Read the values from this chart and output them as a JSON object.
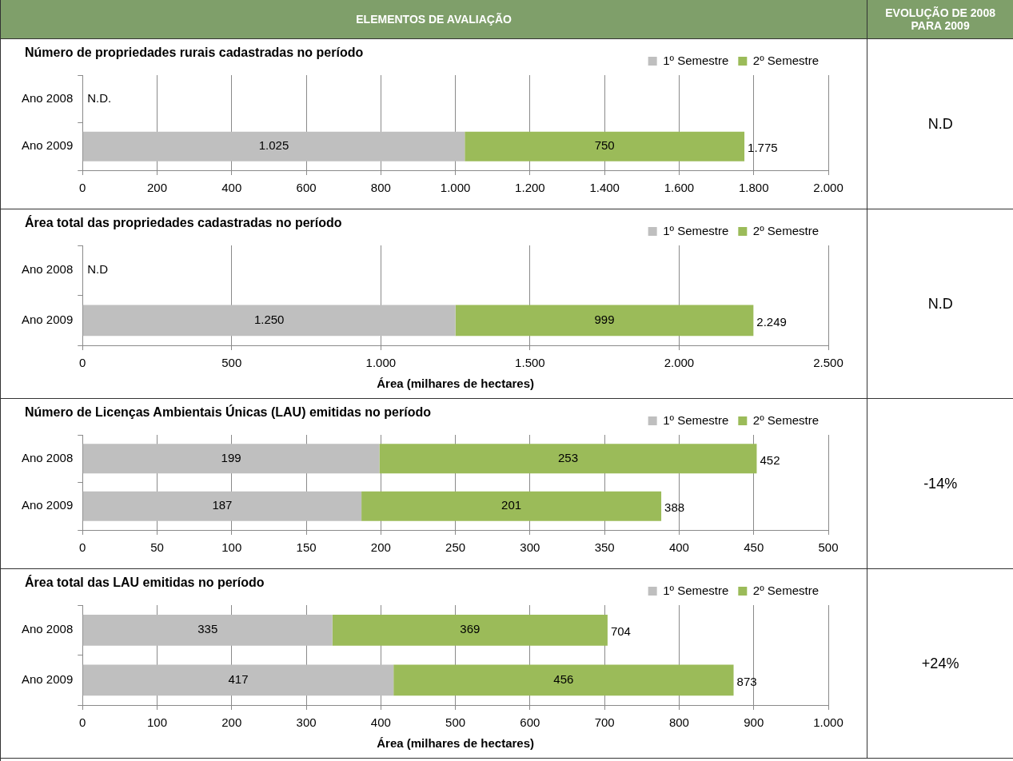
{
  "chart_data": [
    {
      "type": "other",
      "annotations": [
        "ELEMENTOS DE AVALIAÇÃO",
        "EVOLUÇÃO DE 2008 PARA 2009"
      ]
    },
    {
      "type": "bar",
      "title": "Número de propriedades rurais cadastradas no período",
      "orientation": "horizontal",
      "stacked": true,
      "categories": [
        "Ano 2008",
        "Ano 2009"
      ],
      "series": [
        {
          "name": "1º Semestre",
          "color": "#bfbfbf",
          "values": [
            null,
            1025
          ],
          "value_labels": [
            null,
            "1.025"
          ]
        },
        {
          "name": "2º Semestre",
          "color": "#9bbb59",
          "values": [
            null,
            750
          ],
          "value_labels": [
            null,
            "750"
          ]
        }
      ],
      "totals": [
        null,
        "1.775"
      ],
      "xlim": [
        0,
        2000
      ],
      "xticks": [
        0,
        200,
        400,
        600,
        800,
        {
          "value": 1000,
          "label": "1.000"
        },
        {
          "value": 1200,
          "label": "1.200"
        },
        {
          "value": 1400,
          "label": "1.400"
        },
        {
          "value": 1600,
          "label": "1.600"
        },
        {
          "value": 1800,
          "label": "1.800"
        },
        {
          "value": 2000,
          "label": "2.000"
        }
      ],
      "grid": "x",
      "legend": "top right",
      "annotations": [
        "N.D.",
        "N.D"
      ]
    },
    {
      "type": "bar",
      "title": "Área total das propriedades cadastradas no período",
      "xlabel": "Área (milhares de hectares)",
      "orientation": "horizontal",
      "stacked": true,
      "categories": [
        "Ano 2008",
        "Ano 2009"
      ],
      "series": [
        {
          "name": "1º Semestre",
          "color": "#bfbfbf",
          "values": [
            null,
            1250
          ],
          "value_labels": [
            null,
            "1.250"
          ]
        },
        {
          "name": "2º Semestre",
          "color": "#9bbb59",
          "values": [
            null,
            999
          ],
          "value_labels": [
            null,
            "999"
          ]
        }
      ],
      "totals": [
        null,
        "2.249"
      ],
      "xlim": [
        0,
        2500
      ],
      "xticks": [
        0,
        500,
        {
          "value": 1000,
          "label": "1.000"
        },
        {
          "value": 1500,
          "label": "1.500"
        },
        {
          "value": 2000,
          "label": "2.000"
        },
        {
          "value": 2500,
          "label": "2.500"
        }
      ],
      "grid": "x",
      "legend": "top right",
      "annotations": [
        "N.D",
        "N.D"
      ]
    },
    {
      "type": "bar",
      "title": "Número de Licenças Ambientais Únicas (LAU) emitidas no período",
      "orientation": "horizontal",
      "stacked": true,
      "categories": [
        "Ano 2008",
        "Ano 2009"
      ],
      "series": [
        {
          "name": "1º Semestre",
          "color": "#bfbfbf",
          "values": [
            199,
            187
          ],
          "value_labels": [
            "199",
            "187"
          ]
        },
        {
          "name": "2º Semestre",
          "color": "#9bbb59",
          "values": [
            253,
            201
          ],
          "value_labels": [
            "253",
            "201"
          ]
        }
      ],
      "totals": [
        "452",
        "388"
      ],
      "xlim": [
        0,
        500
      ],
      "xticks": [
        0,
        50,
        100,
        150,
        200,
        250,
        300,
        350,
        400,
        450,
        500
      ],
      "grid": "x",
      "legend": "top right",
      "annotations": [
        "-14%"
      ]
    },
    {
      "type": "bar",
      "title": "Área total das LAU emitidas no período",
      "xlabel": "Área (milhares de hectares)",
      "orientation": "horizontal",
      "stacked": true,
      "categories": [
        "Ano 2008",
        "Ano 2009"
      ],
      "series": [
        {
          "name": "1º Semestre",
          "color": "#bfbfbf",
          "values": [
            335,
            417
          ],
          "value_labels": [
            "335",
            "417"
          ]
        },
        {
          "name": "2º Semestre",
          "color": "#9bbb59",
          "values": [
            369,
            456
          ],
          "value_labels": [
            "369",
            "456"
          ]
        }
      ],
      "totals": [
        "704",
        "873"
      ],
      "xlim": [
        0,
        1000
      ],
      "xticks": [
        0,
        100,
        200,
        300,
        400,
        500,
        600,
        700,
        800,
        900,
        {
          "value": 1000,
          "label": "1.000"
        }
      ],
      "grid": "x",
      "legend": "top right",
      "annotations": [
        "+24%"
      ]
    }
  ]
}
